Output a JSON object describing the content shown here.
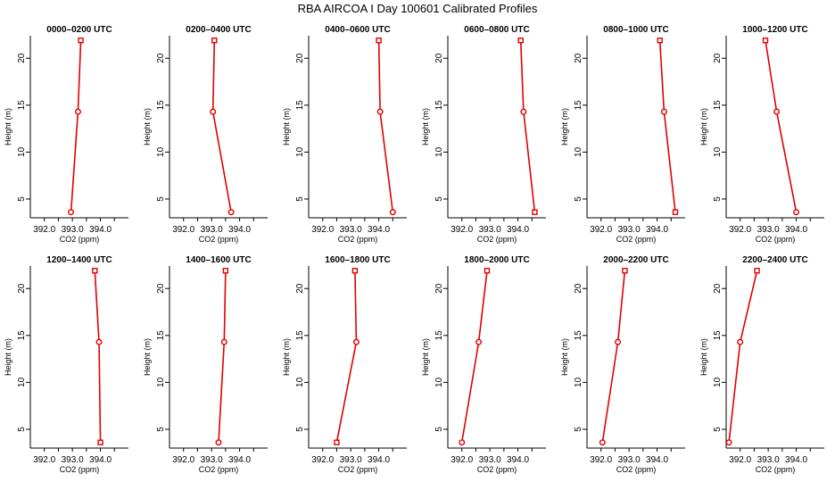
{
  "figure": {
    "title": "RBA AIRCOA I  Day 100601  Calibrated Profiles"
  },
  "chart_data": [
    {
      "type": "line",
      "title": "0000–0200 UTC",
      "xlabel": "CO2 (ppm)",
      "ylabel": "Height (m)",
      "xlim": [
        391.5,
        395.0
      ],
      "ylim": [
        3,
        22.4
      ],
      "x_ticks": [
        "392.0",
        "393.0",
        "394.0"
      ],
      "y_ticks": [
        "5",
        "10",
        "15",
        "20"
      ],
      "series": [
        {
          "x": [
            392.95,
            393.2,
            393.3
          ],
          "y": [
            3.6,
            14.3,
            21.9
          ]
        }
      ]
    },
    {
      "type": "line",
      "title": "0200–0400 UTC",
      "xlabel": "CO2 (ppm)",
      "ylabel": "Height (m)",
      "xlim": [
        391.5,
        395.0
      ],
      "ylim": [
        3,
        22.4
      ],
      "x_ticks": [
        "392.0",
        "393.0",
        "394.0"
      ],
      "y_ticks": [
        "5",
        "10",
        "15",
        "20"
      ],
      "series": [
        {
          "x": [
            393.7,
            393.05,
            393.1
          ],
          "y": [
            3.6,
            14.3,
            21.9
          ]
        }
      ]
    },
    {
      "type": "line",
      "title": "0400–0600 UTC",
      "xlabel": "CO2 (ppm)",
      "ylabel": "Height (m)",
      "xlim": [
        391.5,
        395.0
      ],
      "ylim": [
        3,
        22.4
      ],
      "x_ticks": [
        "392.0",
        "393.0",
        "394.0"
      ],
      "y_ticks": [
        "5",
        "10",
        "15",
        "20"
      ],
      "series": [
        {
          "x": [
            394.5,
            394.05,
            394.0
          ],
          "y": [
            3.6,
            14.3,
            21.9
          ]
        }
      ]
    },
    {
      "type": "line",
      "title": "0600–0800 UTC",
      "xlabel": "CO2 (ppm)",
      "ylabel": "Height (m)",
      "xlim": [
        391.5,
        395.0
      ],
      "ylim": [
        3,
        22.4
      ],
      "x_ticks": [
        "392.0",
        "393.0",
        "394.0"
      ],
      "y_ticks": [
        "5",
        "10",
        "15",
        "20"
      ],
      "series": [
        {
          "x": [
            394.6,
            394.2,
            394.1
          ],
          "y": [
            3.6,
            14.3,
            21.9
          ]
        }
      ]
    },
    {
      "type": "line",
      "title": "0800–1000 UTC",
      "xlabel": "CO2 (ppm)",
      "ylabel": "Height (m)",
      "xlim": [
        391.5,
        395.0
      ],
      "ylim": [
        3,
        22.4
      ],
      "x_ticks": [
        "392.0",
        "393.0",
        "394.0"
      ],
      "y_ticks": [
        "5",
        "10",
        "15",
        "20"
      ],
      "series": [
        {
          "x": [
            394.65,
            394.25,
            394.1
          ],
          "y": [
            3.6,
            14.3,
            21.9
          ]
        }
      ]
    },
    {
      "type": "line",
      "title": "1000–1200 UTC",
      "xlabel": "CO2 (ppm)",
      "ylabel": "Height (m)",
      "xlim": [
        391.5,
        395.0
      ],
      "ylim": [
        3,
        22.4
      ],
      "x_ticks": [
        "392.0",
        "393.0",
        "394.0"
      ],
      "y_ticks": [
        "5",
        "10",
        "15",
        "20"
      ],
      "series": [
        {
          "x": [
            394.0,
            393.3,
            392.9
          ],
          "y": [
            3.6,
            14.3,
            21.9
          ]
        }
      ]
    },
    {
      "type": "line",
      "title": "1200–1400 UTC",
      "xlabel": "CO2 (ppm)",
      "ylabel": "Height (m)",
      "xlim": [
        391.5,
        395.0
      ],
      "ylim": [
        3,
        22.4
      ],
      "x_ticks": [
        "392.0",
        "393.0",
        "394.0"
      ],
      "y_ticks": [
        "5",
        "10",
        "15",
        "20"
      ],
      "series": [
        {
          "x": [
            394.0,
            393.95,
            393.8
          ],
          "y": [
            3.6,
            14.3,
            21.9
          ]
        }
      ]
    },
    {
      "type": "line",
      "title": "1400–1600 UTC",
      "xlabel": "CO2 (ppm)",
      "ylabel": "Height (m)",
      "xlim": [
        391.5,
        395.0
      ],
      "ylim": [
        3,
        22.4
      ],
      "x_ticks": [
        "392.0",
        "393.0",
        "394.0"
      ],
      "y_ticks": [
        "5",
        "10",
        "15",
        "20"
      ],
      "series": [
        {
          "x": [
            393.25,
            393.45,
            393.5
          ],
          "y": [
            3.6,
            14.3,
            21.9
          ]
        }
      ]
    },
    {
      "type": "line",
      "title": "1600–1800 UTC",
      "xlabel": "CO2 (ppm)",
      "ylabel": "Height (m)",
      "xlim": [
        391.5,
        395.0
      ],
      "ylim": [
        3,
        22.4
      ],
      "x_ticks": [
        "392.0",
        "393.0",
        "394.0"
      ],
      "y_ticks": [
        "5",
        "10",
        "15",
        "20"
      ],
      "series": [
        {
          "x": [
            392.5,
            393.2,
            393.15
          ],
          "y": [
            3.6,
            14.3,
            21.9
          ]
        }
      ]
    },
    {
      "type": "line",
      "title": "1800–2000 UTC",
      "xlabel": "CO2 (ppm)",
      "ylabel": "Height (m)",
      "xlim": [
        391.5,
        395.0
      ],
      "ylim": [
        3,
        22.4
      ],
      "x_ticks": [
        "392.0",
        "393.0",
        "394.0"
      ],
      "y_ticks": [
        "5",
        "10",
        "15",
        "20"
      ],
      "series": [
        {
          "x": [
            392.0,
            392.6,
            392.9
          ],
          "y": [
            3.6,
            14.3,
            21.9
          ]
        }
      ]
    },
    {
      "type": "line",
      "title": "2000–2200 UTC",
      "xlabel": "CO2 (ppm)",
      "ylabel": "Height (m)",
      "xlim": [
        391.5,
        395.0
      ],
      "ylim": [
        3,
        22.4
      ],
      "x_ticks": [
        "392.0",
        "393.0",
        "394.0"
      ],
      "y_ticks": [
        "5",
        "10",
        "15",
        "20"
      ],
      "series": [
        {
          "x": [
            392.05,
            392.6,
            392.85
          ],
          "y": [
            3.6,
            14.3,
            21.9
          ]
        }
      ]
    },
    {
      "type": "line",
      "title": "2200–2400 UTC",
      "xlabel": "CO2 (ppm)",
      "ylabel": "Height (m)",
      "xlim": [
        391.5,
        395.0
      ],
      "ylim": [
        3,
        22.4
      ],
      "x_ticks": [
        "392.0",
        "393.0",
        "394.0"
      ],
      "y_ticks": [
        "5",
        "10",
        "15",
        "20"
      ],
      "series": [
        {
          "x": [
            391.6,
            392.0,
            392.6
          ],
          "y": [
            3.6,
            14.3,
            21.9
          ]
        }
      ]
    }
  ],
  "style": {
    "line_color": "#e00000",
    "marker_color": "#e00000",
    "axis_color": "#000000"
  }
}
